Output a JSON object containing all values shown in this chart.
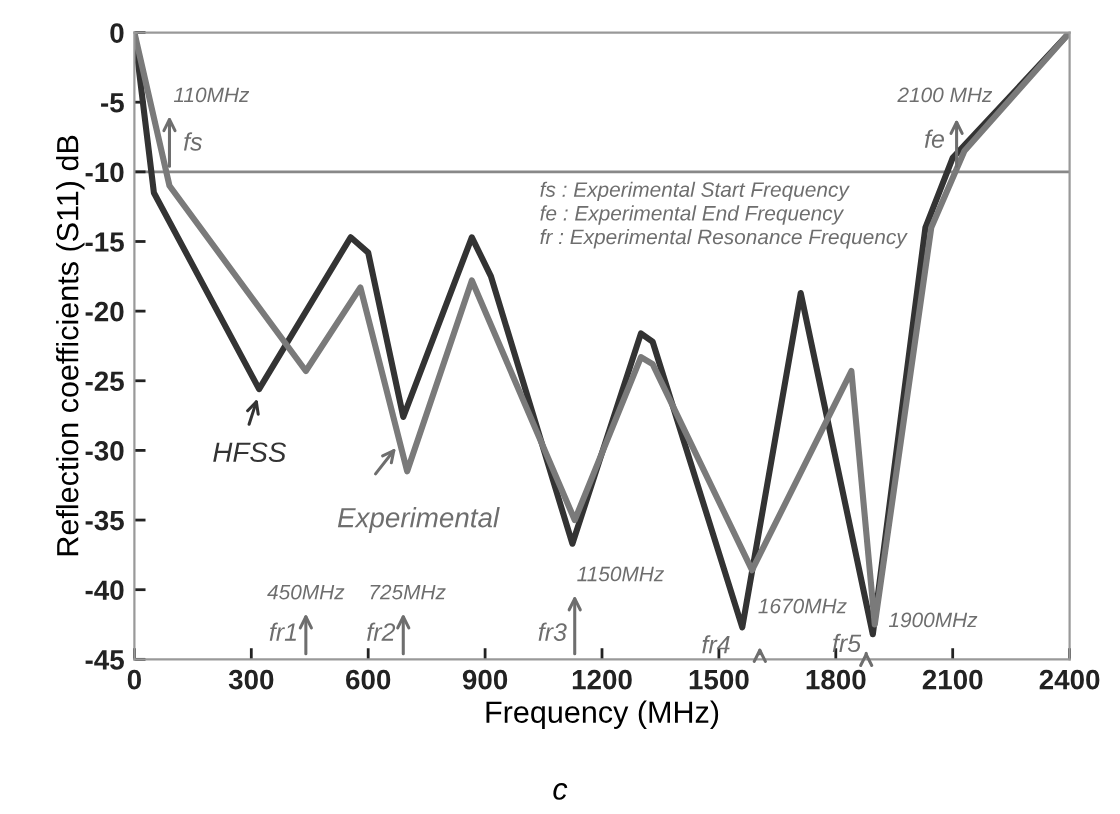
{
  "chart_data": {
    "type": "line",
    "xlabel": "Frequency (MHz)",
    "ylabel": "Reflection coefficients (S11) dB",
    "xlim": [
      0,
      2400
    ],
    "xticks": [
      0,
      300,
      600,
      900,
      1200,
      1500,
      1800,
      2100,
      2400
    ],
    "ylim": [
      -45,
      0
    ],
    "yticks": [
      -45,
      -40,
      -35,
      -30,
      -25,
      -20,
      -15,
      -10,
      -5,
      0
    ],
    "grid": false,
    "legend": false,
    "marker": "none",
    "line_style": "solid",
    "series": [
      {
        "color": "#333333",
        "x": [
          0,
          50,
          320,
          555,
          600,
          690,
          866,
          915,
          1124,
          1300,
          1330,
          1560,
          1710,
          1895,
          2030,
          2100,
          2400
        ],
        "values": [
          0,
          -11.5,
          -25.6,
          -14.7,
          -15.8,
          -27.6,
          -14.7,
          -17.5,
          -36.7,
          -21.6,
          -22.2,
          -42.7,
          -18.7,
          -43.2,
          -14,
          -9,
          0
        ]
      },
      {
        "color": "#7a7a7a",
        "x": [
          0,
          90,
          440,
          580,
          700,
          866,
          1130,
          1300,
          1330,
          1585,
          1840,
          1900,
          2045,
          2130,
          2400
        ],
        "values": [
          0,
          -11,
          -24.3,
          -18.3,
          -31.5,
          -17.8,
          -35,
          -23.3,
          -23.8,
          -38.6,
          -24.3,
          -42.5,
          -14,
          -8.5,
          0
        ]
      }
    ],
    "ref_lines": [
      {
        "axis": "y",
        "value": -10,
        "color": "#888888",
        "line_style": "solid"
      }
    ],
    "annotations": [
      {
        "text": "110MHz",
        "x": 90,
        "y": -10
      },
      "fs",
      {
        "text": "2100 MHz",
        "x": 2110,
        "y": -10
      },
      "fe",
      "fs : Experimental Start Frequency",
      "fe : Experimental End Frequency",
      "fr : Experimental Resonance Frequency",
      "HFSS",
      "Experimental",
      "450MHz",
      "fr1",
      "725MHz",
      "fr2",
      "1150MHz",
      "fr3",
      "fr4",
      "1670MHz",
      "fr5",
      "1900MHz",
      "c"
    ]
  }
}
